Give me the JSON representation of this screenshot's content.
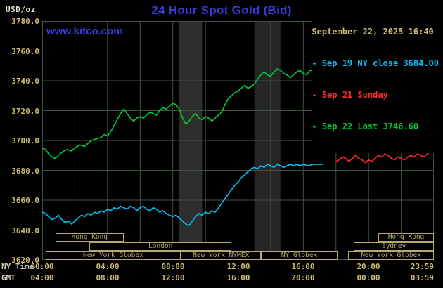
{
  "header": {
    "unit": "USD/oz",
    "title": "24 Hour Spot Gold (Bid)",
    "datetime": "September 22, 2025 16:40",
    "watermark": "www.kitco.com"
  },
  "legend": {
    "items": [
      {
        "label": "- Sep 19 NY close 3684.00",
        "color": "#00c3ff"
      },
      {
        "label": "- Sep 21 Sunday",
        "color": "#ff2b2b"
      },
      {
        "label": "- Sep 22 Last 3746.60",
        "color": "#00cc33"
      }
    ]
  },
  "axes": {
    "ny_caption": "NY Time",
    "gmt_caption": "GMT"
  },
  "colors": {
    "background": "#000000",
    "title_blue": "#3a3ad9",
    "axis_tan": "#cdbd72",
    "axis_caption": "#cfcab0",
    "unit_text": "#ece5c8",
    "session_khaki": "#b8a96a"
  },
  "chart_data": {
    "type": "line",
    "title": "24 Hour Spot Gold (Bid)",
    "xlabel": "NY Time / GMT",
    "ylabel": "USD/oz",
    "x_range": [
      0,
      24
    ],
    "y_range": [
      3620,
      3780
    ],
    "y_ticks": [
      3620,
      3640,
      3660,
      3680,
      3700,
      3720,
      3740,
      3760,
      3780
    ],
    "x_ticks": [
      {
        "hour": 0,
        "ny": "00:00",
        "gmt": "04:00",
        "align": "center"
      },
      {
        "hour": 4,
        "ny": "04:00",
        "gmt": "08:00",
        "align": "center"
      },
      {
        "hour": 8,
        "ny": "08:00",
        "gmt": "12:00",
        "align": "center"
      },
      {
        "hour": 12,
        "ny": "12:00",
        "gmt": "16:00",
        "align": "center"
      },
      {
        "hour": 16,
        "ny": "16:00",
        "gmt": "20:00",
        "align": "center"
      },
      {
        "hour": 20,
        "ny": "20:00",
        "gmt": "00:00",
        "align": "center"
      },
      {
        "hour": 23.983,
        "ny": "23:59",
        "gmt": "03:59",
        "align": "end"
      }
    ],
    "grid": {
      "x_step_hours": 2,
      "y_step": 20,
      "color": "#3f543f"
    },
    "bands": [
      {
        "start": 8.4,
        "end": 9.8,
        "color": "#2e2e2e"
      },
      {
        "start": 13.0,
        "end": 14.6,
        "color": "#262626"
      }
    ],
    "key_values": {
      "sep19_ny_close": 3684.0,
      "sep22_last": 3746.6
    },
    "series": [
      {
        "name": "Sep 19 NY close",
        "color": "#00c3ff",
        "points": [
          [
            0,
            3652
          ],
          [
            0.2,
            3651
          ],
          [
            0.4,
            3649
          ],
          [
            0.6,
            3647
          ],
          [
            0.8,
            3648
          ],
          [
            1,
            3650
          ],
          [
            1.2,
            3647
          ],
          [
            1.4,
            3645
          ],
          [
            1.6,
            3646
          ],
          [
            1.8,
            3644
          ],
          [
            2,
            3646
          ],
          [
            2.2,
            3648
          ],
          [
            2.4,
            3650
          ],
          [
            2.6,
            3649
          ],
          [
            2.8,
            3651
          ],
          [
            3,
            3650
          ],
          [
            3.2,
            3652
          ],
          [
            3.4,
            3651
          ],
          [
            3.6,
            3653
          ],
          [
            3.8,
            3652
          ],
          [
            4,
            3654
          ],
          [
            4.2,
            3653
          ],
          [
            4.4,
            3655
          ],
          [
            4.6,
            3654
          ],
          [
            4.8,
            3656
          ],
          [
            5,
            3655
          ],
          [
            5.2,
            3654
          ],
          [
            5.4,
            3656
          ],
          [
            5.6,
            3655
          ],
          [
            5.8,
            3653
          ],
          [
            6,
            3655
          ],
          [
            6.2,
            3656
          ],
          [
            6.4,
            3654
          ],
          [
            6.6,
            3653
          ],
          [
            6.8,
            3655
          ],
          [
            7,
            3654
          ],
          [
            7.2,
            3652
          ],
          [
            7.4,
            3653
          ],
          [
            7.6,
            3651
          ],
          [
            7.8,
            3650
          ],
          [
            8,
            3649
          ],
          [
            8.2,
            3650
          ],
          [
            8.4,
            3648
          ],
          [
            8.6,
            3646
          ],
          [
            8.8,
            3644
          ],
          [
            9,
            3643
          ],
          [
            9.2,
            3646
          ],
          [
            9.4,
            3649
          ],
          [
            9.6,
            3651
          ],
          [
            9.8,
            3650
          ],
          [
            10,
            3652
          ],
          [
            10.2,
            3651
          ],
          [
            10.4,
            3653
          ],
          [
            10.6,
            3652
          ],
          [
            10.8,
            3655
          ],
          [
            11,
            3658
          ],
          [
            11.2,
            3661
          ],
          [
            11.4,
            3664
          ],
          [
            11.6,
            3667
          ],
          [
            11.8,
            3670
          ],
          [
            12,
            3672
          ],
          [
            12.2,
            3675
          ],
          [
            12.4,
            3677
          ],
          [
            12.6,
            3679
          ],
          [
            12.8,
            3681
          ],
          [
            13,
            3682
          ],
          [
            13.2,
            3681
          ],
          [
            13.4,
            3683
          ],
          [
            13.6,
            3682
          ],
          [
            13.8,
            3684
          ],
          [
            14,
            3683
          ],
          [
            14.2,
            3682
          ],
          [
            14.4,
            3684
          ],
          [
            14.6,
            3683
          ],
          [
            14.8,
            3682
          ],
          [
            15,
            3683
          ],
          [
            15.2,
            3684
          ],
          [
            15.4,
            3683
          ],
          [
            15.6,
            3684
          ],
          [
            15.8,
            3683
          ],
          [
            16,
            3684
          ],
          [
            16.3,
            3683
          ],
          [
            16.6,
            3684
          ],
          [
            17,
            3684
          ],
          [
            17.2,
            3684
          ]
        ]
      },
      {
        "name": "Sep 21 Sunday",
        "color": "#ff2b2b",
        "points": [
          [
            18,
            3686
          ],
          [
            18.2,
            3687
          ],
          [
            18.4,
            3689
          ],
          [
            18.6,
            3688
          ],
          [
            18.8,
            3686
          ],
          [
            19,
            3688
          ],
          [
            19.2,
            3690
          ],
          [
            19.4,
            3688
          ],
          [
            19.6,
            3687
          ],
          [
            19.8,
            3685
          ],
          [
            20,
            3687
          ],
          [
            20.2,
            3686
          ],
          [
            20.4,
            3688
          ],
          [
            20.6,
            3690
          ],
          [
            20.8,
            3689
          ],
          [
            21,
            3691
          ],
          [
            21.2,
            3690
          ],
          [
            21.4,
            3688
          ],
          [
            21.6,
            3687
          ],
          [
            21.8,
            3689
          ],
          [
            22,
            3688
          ],
          [
            22.2,
            3687
          ],
          [
            22.4,
            3689
          ],
          [
            22.6,
            3690
          ],
          [
            22.8,
            3689
          ],
          [
            23,
            3691
          ],
          [
            23.2,
            3690
          ],
          [
            23.4,
            3689
          ],
          [
            23.6,
            3691
          ],
          [
            23.8,
            3693
          ],
          [
            24,
            3697
          ]
        ]
      },
      {
        "name": "Sep 22 Last",
        "color": "#00cc33",
        "points": [
          [
            0,
            3695
          ],
          [
            0.2,
            3694
          ],
          [
            0.4,
            3691
          ],
          [
            0.6,
            3689
          ],
          [
            0.8,
            3688
          ],
          [
            1,
            3690
          ],
          [
            1.2,
            3692
          ],
          [
            1.5,
            3694
          ],
          [
            1.8,
            3693
          ],
          [
            2,
            3695
          ],
          [
            2.3,
            3697
          ],
          [
            2.6,
            3696
          ],
          [
            2.8,
            3698
          ],
          [
            3,
            3700
          ],
          [
            3.3,
            3701
          ],
          [
            3.6,
            3702
          ],
          [
            3.8,
            3704
          ],
          [
            4,
            3703
          ],
          [
            4.2,
            3706
          ],
          [
            4.4,
            3710
          ],
          [
            4.6,
            3714
          ],
          [
            4.8,
            3718
          ],
          [
            5,
            3721
          ],
          [
            5.2,
            3718
          ],
          [
            5.4,
            3715
          ],
          [
            5.6,
            3713
          ],
          [
            5.8,
            3715
          ],
          [
            6,
            3716
          ],
          [
            6.2,
            3715
          ],
          [
            6.4,
            3717
          ],
          [
            6.6,
            3719
          ],
          [
            6.8,
            3718
          ],
          [
            7,
            3717
          ],
          [
            7.2,
            3720
          ],
          [
            7.4,
            3722
          ],
          [
            7.6,
            3721
          ],
          [
            7.8,
            3723
          ],
          [
            8,
            3725
          ],
          [
            8.2,
            3724
          ],
          [
            8.4,
            3721
          ],
          [
            8.6,
            3715
          ],
          [
            8.8,
            3711
          ],
          [
            9,
            3713
          ],
          [
            9.2,
            3716
          ],
          [
            9.4,
            3718
          ],
          [
            9.6,
            3715
          ],
          [
            9.8,
            3714
          ],
          [
            10,
            3716
          ],
          [
            10.2,
            3715
          ],
          [
            10.4,
            3713
          ],
          [
            10.6,
            3715
          ],
          [
            10.8,
            3717
          ],
          [
            11,
            3719
          ],
          [
            11.2,
            3724
          ],
          [
            11.4,
            3728
          ],
          [
            11.6,
            3730
          ],
          [
            11.8,
            3732
          ],
          [
            12,
            3733
          ],
          [
            12.2,
            3735
          ],
          [
            12.4,
            3737
          ],
          [
            12.6,
            3735
          ],
          [
            12.8,
            3736
          ],
          [
            13,
            3738
          ],
          [
            13.2,
            3741
          ],
          [
            13.4,
            3744
          ],
          [
            13.6,
            3746
          ],
          [
            13.8,
            3744
          ],
          [
            14,
            3743
          ],
          [
            14.2,
            3746
          ],
          [
            14.4,
            3748
          ],
          [
            14.6,
            3747
          ],
          [
            14.8,
            3745
          ],
          [
            15,
            3744
          ],
          [
            15.2,
            3742
          ],
          [
            15.4,
            3744
          ],
          [
            15.6,
            3746
          ],
          [
            15.8,
            3747
          ],
          [
            16,
            3745
          ],
          [
            16.2,
            3744
          ],
          [
            16.4,
            3747
          ],
          [
            16.7,
            3746.6
          ]
        ]
      }
    ],
    "sessions": [
      {
        "row": 1,
        "label": "Hong Kong",
        "start": 0.8,
        "end": 5.0
      },
      {
        "row": 1,
        "label": "Hong Kong",
        "start": 20.6,
        "end": 24
      },
      {
        "row": 2,
        "label": "London",
        "start": 2.9,
        "end": 11.6
      },
      {
        "row": 2,
        "label": "Sydney",
        "start": 19.1,
        "end": 24
      },
      {
        "row": 3,
        "label": "New York Globex",
        "start": 0.2,
        "end": 8.5
      },
      {
        "row": 3,
        "label": "New York NYMEX",
        "start": 8.5,
        "end": 13.4
      },
      {
        "row": 3,
        "label": "NY Globex",
        "start": 13.4,
        "end": 18.1
      },
      {
        "row": 3,
        "label": "New York Globex",
        "start": 18.75,
        "end": 24
      }
    ]
  }
}
